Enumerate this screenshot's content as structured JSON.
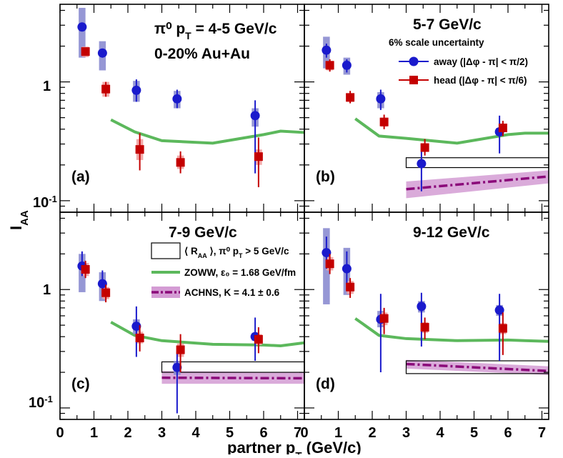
{
  "chart_data": {
    "type": "scatter",
    "title": "",
    "xlabel": "partner p_T (GeV/c)",
    "ylabel": "I_AA",
    "xlim": [
      0,
      7.2
    ],
    "ylim": [
      0.08,
      4.5
    ],
    "y_scale": "log",
    "x_ticks": [
      "0",
      "1",
      "2",
      "3",
      "4",
      "5",
      "6",
      "7"
    ],
    "y_tick_labels": {
      "top": "1",
      "bottom": "10-1"
    },
    "legend": {
      "away": "away (|Δφ - π| < π/2)",
      "head": "head (|Δφ - π| < π/6)",
      "scale_note": "6% scale uncertainty",
      "raa_box": "⟨ R_AA ⟩, π⁰ p_T > 5 GeV/c",
      "zoww": "ZOWW, ε₀ = 1.68 GeV/fm",
      "achns": "ACHNS, K = 4.1 ± 0.6"
    },
    "colors": {
      "away": "#1a1acc",
      "away_sys": "#8b8cd0",
      "head": "#c40000",
      "head_sys": "#f2a0a0",
      "zoww": "#5cb85c",
      "achns": "#8b0a7a",
      "achns_band": "#d49cd4"
    },
    "panels": [
      {
        "id": "a",
        "label": "(a)",
        "title": "π⁰ p_T = 4-5 GeV/c",
        "subtitle": "0-20% Au+Au",
        "away": {
          "x": [
            0.65,
            1.25,
            2.25,
            3.45,
            5.75
          ],
          "y": [
            2.9,
            1.75,
            0.85,
            0.72,
            0.52
          ],
          "stat_lo": [
            2.9,
            1.6,
            0.68,
            0.6,
            0.17
          ],
          "stat_hi": [
            2.9,
            1.9,
            1.05,
            0.86,
            0.7
          ],
          "sys_lo": [
            1.6,
            1.25,
            0.68,
            0.6,
            0.42
          ],
          "sys_hi": [
            4.2,
            2.2,
            1.02,
            0.84,
            0.6
          ]
        },
        "head": {
          "x": [
            0.75,
            1.35,
            2.35,
            3.55,
            5.85
          ],
          "y": [
            1.8,
            0.87,
            0.27,
            0.21,
            0.235
          ],
          "stat_lo": [
            1.8,
            0.75,
            0.18,
            0.17,
            0.13
          ],
          "stat_hi": [
            1.8,
            1.0,
            0.37,
            0.26,
            0.34
          ],
          "sys_lo": [
            1.62,
            0.75,
            0.22,
            0.185,
            0.2
          ],
          "sys_hi": [
            1.98,
            1.0,
            0.33,
            0.24,
            0.27
          ]
        },
        "zoww": {
          "x": [
            1.5,
            2.2,
            3.0,
            4.5,
            6.0,
            6.5,
            7.2
          ],
          "y": [
            0.48,
            0.38,
            0.32,
            0.305,
            0.36,
            0.385,
            0.375
          ]
        },
        "raa": null,
        "achns": null
      },
      {
        "id": "b",
        "label": "(b)",
        "title": "5-7 GeV/c",
        "subtitle": "",
        "away": {
          "x": [
            0.65,
            1.25,
            2.25,
            3.45,
            5.75
          ],
          "y": [
            1.85,
            1.38,
            0.72,
            0.205,
            0.38
          ],
          "stat_lo": [
            1.6,
            1.2,
            0.58,
            0.12,
            0.25
          ],
          "stat_hi": [
            2.1,
            1.55,
            0.86,
            0.3,
            0.52
          ],
          "sys_lo": [
            1.3,
            1.15,
            0.6,
            0.19,
            0.36
          ],
          "sys_hi": [
            2.4,
            1.6,
            0.82,
            0.22,
            0.41
          ]
        },
        "head": {
          "x": [
            0.75,
            1.35,
            2.35,
            3.55,
            5.85
          ],
          "y": [
            1.38,
            0.74,
            0.46,
            0.28,
            0.41
          ],
          "stat_lo": [
            1.22,
            0.66,
            0.4,
            0.24,
            0.35
          ],
          "stat_hi": [
            1.55,
            0.84,
            0.53,
            0.33,
            0.47
          ],
          "sys_lo": [
            1.25,
            0.68,
            0.42,
            0.26,
            0.38
          ],
          "sys_hi": [
            1.5,
            0.8,
            0.5,
            0.3,
            0.44
          ]
        },
        "zoww": {
          "x": [
            1.5,
            2.2,
            3.0,
            4.5,
            6.0,
            6.5,
            7.2
          ],
          "y": [
            0.49,
            0.35,
            0.335,
            0.305,
            0.36,
            0.37,
            0.37
          ]
        },
        "raa": {
          "x0": 3.0,
          "x1": 7.2,
          "y0": 0.19,
          "y1": 0.23
        },
        "achns": {
          "x0": 3.0,
          "x1": 7.2,
          "y0": 0.125,
          "y1": 0.16,
          "band_lo0": 0.105,
          "band_hi0": 0.145,
          "band_lo1": 0.14,
          "band_hi1": 0.18
        }
      },
      {
        "id": "c",
        "label": "(c)",
        "title": "7-9 GeV/c",
        "subtitle": "",
        "away": {
          "x": [
            0.65,
            1.25,
            2.25,
            3.45,
            5.75
          ],
          "y": [
            1.58,
            1.12,
            0.49,
            0.22,
            0.4
          ],
          "stat_lo": [
            1.3,
            0.9,
            0.27,
            0.09,
            0.25
          ],
          "stat_hi": [
            2.1,
            1.45,
            0.72,
            0.3,
            0.58
          ],
          "sys_lo": [
            0.95,
            0.8,
            0.42,
            0.19,
            0.37
          ],
          "sys_hi": [
            2.0,
            1.4,
            0.56,
            0.25,
            0.43
          ]
        },
        "head": {
          "x": [
            0.75,
            1.35,
            2.35,
            3.55,
            5.85
          ],
          "y": [
            1.48,
            0.94,
            0.39,
            0.31,
            0.38
          ],
          "stat_lo": [
            1.25,
            0.78,
            0.3,
            0.2,
            0.29
          ],
          "stat_hi": [
            1.75,
            1.1,
            0.5,
            0.42,
            0.48
          ],
          "sys_lo": [
            1.3,
            0.83,
            0.35,
            0.27,
            0.34
          ],
          "sys_hi": [
            1.68,
            1.05,
            0.44,
            0.35,
            0.42
          ]
        },
        "zoww": {
          "x": [
            1.5,
            2.2,
            3.0,
            4.5,
            6.0,
            6.5,
            7.2
          ],
          "y": [
            0.53,
            0.41,
            0.37,
            0.345,
            0.34,
            0.335,
            0.355
          ]
        },
        "raa": {
          "x0": 3.0,
          "x1": 7.2,
          "y0": 0.2,
          "y1": 0.245
        },
        "achns": {
          "x0": 3.0,
          "x1": 7.2,
          "y0": 0.18,
          "y1": 0.178,
          "band_lo0": 0.16,
          "band_hi0": 0.205,
          "band_lo1": 0.16,
          "band_hi1": 0.2
        }
      },
      {
        "id": "d",
        "label": "(d)",
        "title": "9-12 GeV/c",
        "subtitle": "",
        "away": {
          "x": [
            0.65,
            1.25,
            2.25,
            3.45,
            5.75
          ],
          "y": [
            2.05,
            1.5,
            0.56,
            0.72,
            0.67
          ],
          "stat_lo": [
            1.5,
            1.1,
            0.2,
            0.33,
            0.25
          ],
          "stat_hi": [
            2.8,
            2.1,
            0.92,
            0.94,
            0.92
          ],
          "sys_lo": [
            0.75,
            0.9,
            0.48,
            0.64,
            0.6
          ],
          "sys_hi": [
            3.3,
            2.25,
            0.66,
            0.8,
            0.74
          ]
        },
        "head": {
          "x": [
            0.75,
            1.35,
            2.35,
            3.55,
            5.85
          ],
          "y": [
            1.65,
            1.05,
            0.57,
            0.48,
            0.47
          ],
          "stat_lo": [
            1.35,
            0.85,
            0.42,
            0.38,
            0.28
          ],
          "stat_hi": [
            2.0,
            1.25,
            0.7,
            0.58,
            0.64
          ],
          "sys_lo": [
            1.45,
            0.92,
            0.5,
            0.43,
            0.42
          ],
          "sys_hi": [
            1.88,
            1.18,
            0.64,
            0.53,
            0.52
          ]
        },
        "zoww": {
          "x": [
            1.5,
            2.2,
            3.0,
            4.5,
            6.0,
            6.5,
            7.2
          ],
          "y": [
            0.57,
            0.41,
            0.385,
            0.37,
            0.375,
            0.37,
            0.365
          ]
        },
        "raa": {
          "x0": 3.0,
          "x1": 7.2,
          "y0": 0.195,
          "y1": 0.25
        },
        "achns": {
          "x0": 3.0,
          "x1": 7.2,
          "y0": 0.235,
          "y1": 0.205,
          "band_lo0": 0.215,
          "band_hi0": 0.255,
          "band_lo1": 0.19,
          "band_hi1": 0.225
        }
      }
    ]
  }
}
